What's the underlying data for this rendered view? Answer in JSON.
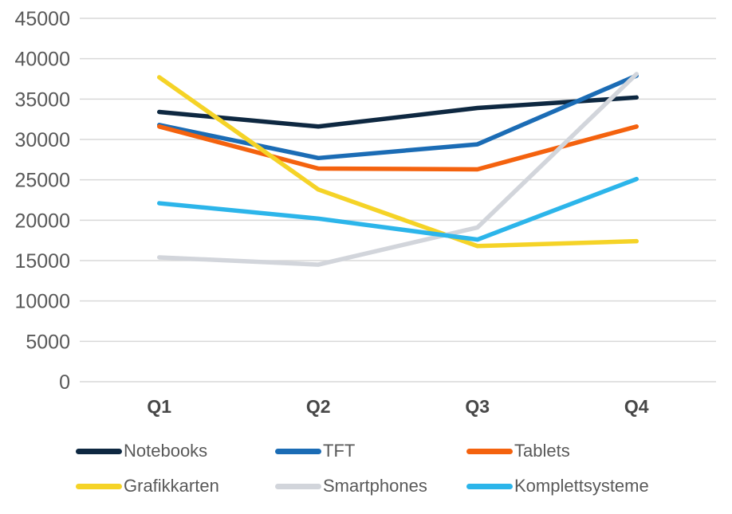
{
  "chart_data": {
    "type": "line",
    "categories": [
      "Q1",
      "Q2",
      "Q3",
      "Q4"
    ],
    "series": [
      {
        "name": "Notebooks",
        "color": "#0E2841",
        "values": [
          33400,
          31600,
          33900,
          35200
        ]
      },
      {
        "name": "TFT",
        "color": "#1B6CB5",
        "values": [
          31800,
          27700,
          29400,
          37900
        ]
      },
      {
        "name": "Tablets",
        "color": "#F4620E",
        "values": [
          31600,
          26400,
          26300,
          31600
        ]
      },
      {
        "name": "Grafikkarten",
        "color": "#F5D327",
        "values": [
          37700,
          23800,
          16800,
          17400
        ]
      },
      {
        "name": "Smartphones",
        "color": "#D2D5DB",
        "values": [
          15400,
          14500,
          19100,
          38100
        ]
      },
      {
        "name": "Komplettsysteme",
        "color": "#2CB5EA",
        "values": [
          22100,
          20200,
          17600,
          25100
        ]
      }
    ],
    "title": "",
    "xlabel": "",
    "ylabel": "",
    "ylim": [
      0,
      45000
    ],
    "ytick_step": 5000,
    "ytick_labels": [
      "0",
      "5000",
      "10000",
      "15000",
      "20000",
      "25000",
      "30000",
      "35000",
      "40000",
      "45000"
    ],
    "grid": true,
    "legend_position": "bottom",
    "style": {
      "gridline_color": "#D9D9D9",
      "y_label_color": "#595959",
      "x_label_color": "#474747",
      "legend_text_color": "#595959",
      "background": "#FFFFFF",
      "line_width": 5.5
    }
  }
}
